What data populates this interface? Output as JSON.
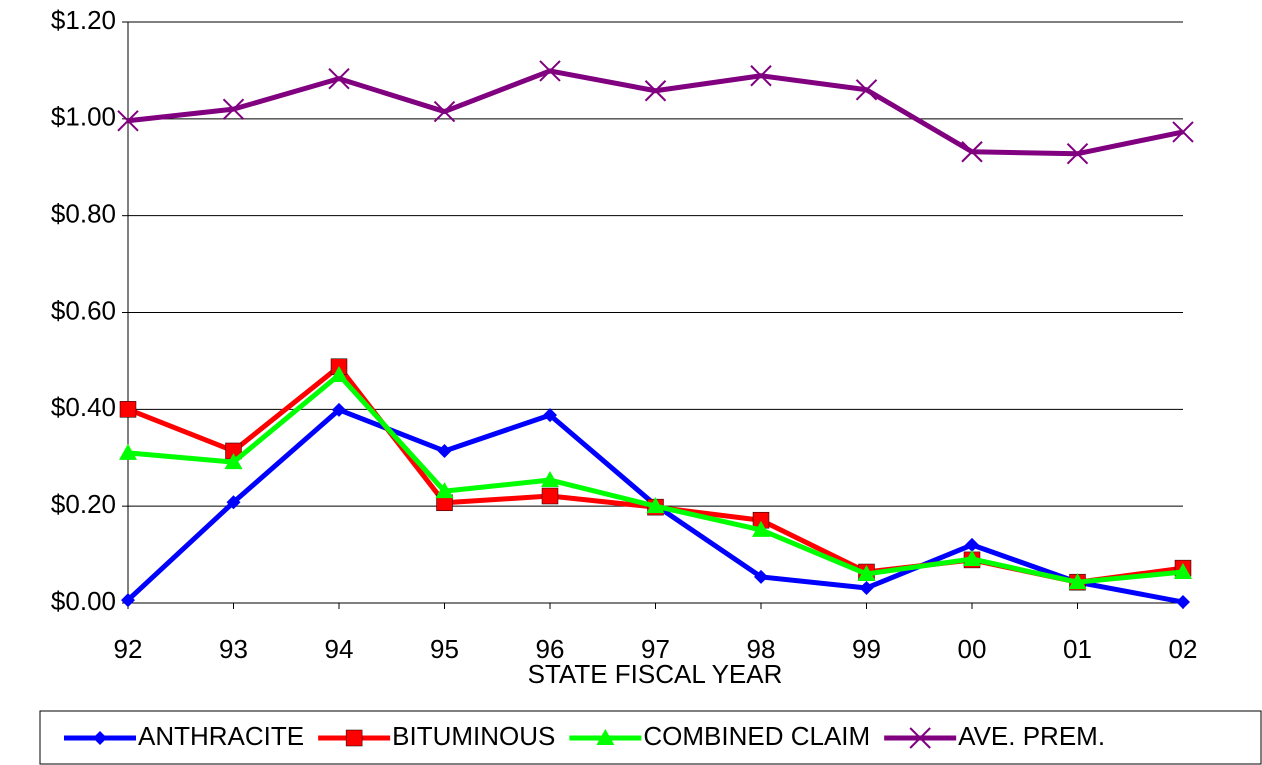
{
  "chart_data": {
    "type": "line",
    "x_label": "STATE FISCAL YEAR",
    "categories": [
      "92",
      "93",
      "94",
      "95",
      "96",
      "97",
      "98",
      "99",
      "00",
      "01",
      "02"
    ],
    "series": [
      {
        "name": "ANTHRACITE",
        "color": "#0000ff",
        "marker": "diamond",
        "values": [
          0.006,
          0.208,
          0.399,
          0.314,
          0.388,
          0.202,
          0.054,
          0.031,
          0.12,
          0.043,
          0.002
        ]
      },
      {
        "name": "BITUMINOUS",
        "color": "#ff0000",
        "marker": "square",
        "values": [
          0.4,
          0.314,
          0.488,
          0.207,
          0.221,
          0.198,
          0.171,
          0.064,
          0.089,
          0.043,
          0.072
        ]
      },
      {
        "name": "COMBINED CLAIM",
        "color": "#00ff00",
        "marker": "triangle",
        "values": [
          0.31,
          0.291,
          0.471,
          0.231,
          0.254,
          0.2,
          0.151,
          0.06,
          0.091,
          0.043,
          0.064
        ]
      },
      {
        "name": "AVE. PREM.",
        "color": "#800080",
        "marker": "x",
        "values": [
          0.996,
          1.02,
          1.083,
          1.015,
          1.099,
          1.058,
          1.089,
          1.06,
          0.932,
          0.928,
          0.973
        ]
      }
    ],
    "ylim": [
      0,
      1.2
    ],
    "yticks": [
      {
        "value": 0,
        "label": "$0.00"
      },
      {
        "value": 0.2,
        "label": "$0.20"
      },
      {
        "value": 0.4,
        "label": "$0.40"
      },
      {
        "value": 0.6,
        "label": "$0.60"
      },
      {
        "value": 0.8,
        "label": "$0.80"
      },
      {
        "value": 1.0,
        "label": "$1.00"
      },
      {
        "value": 1.2,
        "label": "$1.20"
      }
    ],
    "grid": true,
    "legend": "bottom"
  }
}
